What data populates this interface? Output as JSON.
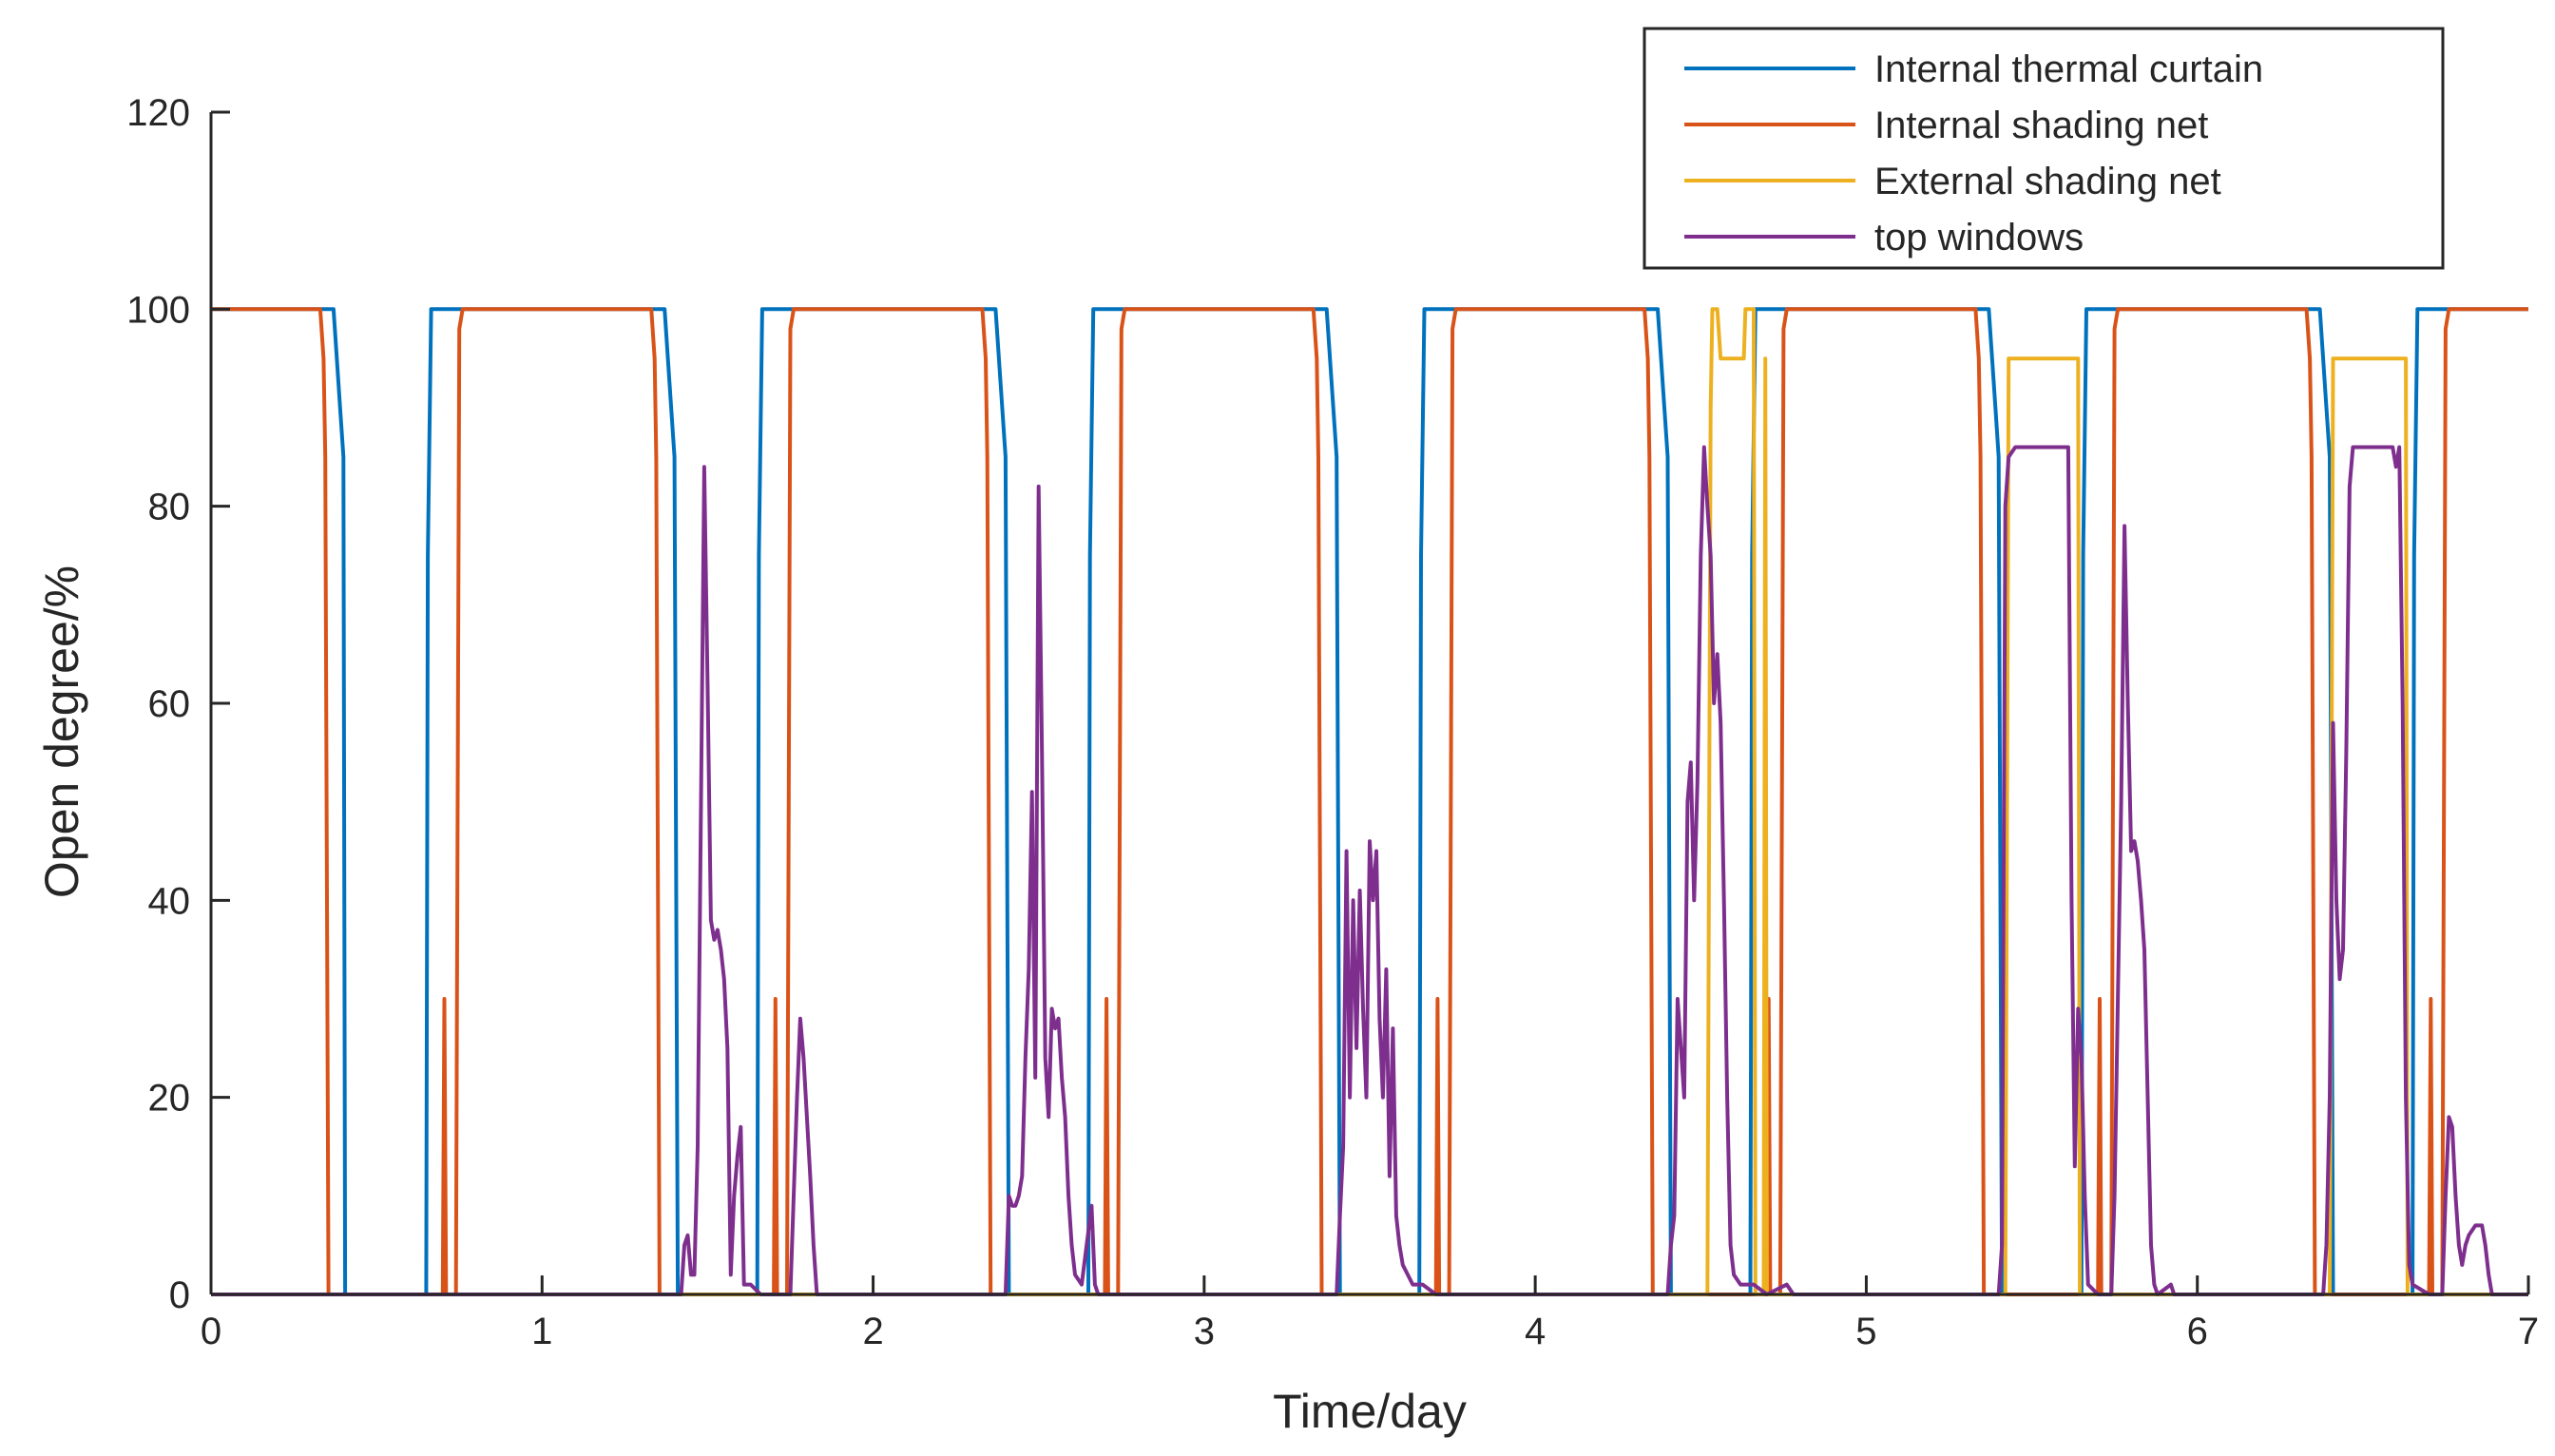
{
  "chart_data": {
    "type": "line",
    "title": "",
    "xlabel": "Time/day",
    "ylabel": "Open degree/%",
    "xlim": [
      0,
      7
    ],
    "ylim": [
      0,
      120
    ],
    "xticks": [
      0,
      1,
      2,
      3,
      4,
      5,
      6,
      7
    ],
    "yticks": [
      0,
      20,
      40,
      60,
      80,
      100,
      120
    ],
    "legend_position": "top-right",
    "series": [
      {
        "name": "Internal thermal curtain",
        "color": "#0072BD",
        "points": [
          [
            0,
            100
          ],
          [
            0.37,
            100
          ],
          [
            0.39,
            90
          ],
          [
            0.4,
            85
          ],
          [
            0.405,
            0
          ],
          [
            0.65,
            0
          ],
          [
            0.655,
            75
          ],
          [
            0.665,
            100
          ],
          [
            1.37,
            100
          ],
          [
            1.39,
            90
          ],
          [
            1.4,
            85
          ],
          [
            1.41,
            0
          ],
          [
            1.65,
            0
          ],
          [
            1.655,
            75
          ],
          [
            1.665,
            100
          ],
          [
            2.37,
            100
          ],
          [
            2.39,
            90
          ],
          [
            2.4,
            85
          ],
          [
            2.41,
            0
          ],
          [
            2.65,
            0
          ],
          [
            2.655,
            75
          ],
          [
            2.665,
            100
          ],
          [
            3.37,
            100
          ],
          [
            3.39,
            90
          ],
          [
            3.4,
            85
          ],
          [
            3.41,
            0
          ],
          [
            3.65,
            0
          ],
          [
            3.655,
            75
          ],
          [
            3.665,
            100
          ],
          [
            4.37,
            100
          ],
          [
            4.39,
            90
          ],
          [
            4.4,
            85
          ],
          [
            4.41,
            0
          ],
          [
            4.65,
            0
          ],
          [
            4.655,
            75
          ],
          [
            4.665,
            100
          ],
          [
            5.37,
            100
          ],
          [
            5.39,
            90
          ],
          [
            5.4,
            85
          ],
          [
            5.41,
            0
          ],
          [
            5.65,
            0
          ],
          [
            5.655,
            75
          ],
          [
            5.665,
            100
          ],
          [
            6.37,
            100
          ],
          [
            6.39,
            90
          ],
          [
            6.4,
            85
          ],
          [
            6.41,
            0
          ],
          [
            6.65,
            0
          ],
          [
            6.655,
            75
          ],
          [
            6.665,
            100
          ],
          [
            7.0,
            100
          ]
        ]
      },
      {
        "name": "Internal shading net",
        "color": "#D95319",
        "points": [
          [
            0,
            100
          ],
          [
            0.33,
            100
          ],
          [
            0.34,
            95
          ],
          [
            0.345,
            85
          ],
          [
            0.355,
            0
          ],
          [
            0.7,
            0
          ],
          [
            0.705,
            30
          ],
          [
            0.71,
            0
          ],
          [
            0.74,
            0
          ],
          [
            0.75,
            98
          ],
          [
            0.76,
            100
          ],
          [
            1.33,
            100
          ],
          [
            1.34,
            95
          ],
          [
            1.345,
            85
          ],
          [
            1.355,
            0
          ],
          [
            1.7,
            0
          ],
          [
            1.705,
            30
          ],
          [
            1.71,
            0
          ],
          [
            1.74,
            0
          ],
          [
            1.75,
            98
          ],
          [
            1.76,
            100
          ],
          [
            2.33,
            100
          ],
          [
            2.34,
            95
          ],
          [
            2.345,
            85
          ],
          [
            2.355,
            0
          ],
          [
            2.7,
            0
          ],
          [
            2.705,
            30
          ],
          [
            2.71,
            0
          ],
          [
            2.74,
            0
          ],
          [
            2.75,
            98
          ],
          [
            2.76,
            100
          ],
          [
            3.33,
            100
          ],
          [
            3.34,
            95
          ],
          [
            3.345,
            85
          ],
          [
            3.355,
            0
          ],
          [
            3.7,
            0
          ],
          [
            3.705,
            30
          ],
          [
            3.71,
            0
          ],
          [
            3.74,
            0
          ],
          [
            3.75,
            98
          ],
          [
            3.76,
            100
          ],
          [
            4.33,
            100
          ],
          [
            4.34,
            95
          ],
          [
            4.345,
            85
          ],
          [
            4.355,
            0
          ],
          [
            4.7,
            0
          ],
          [
            4.705,
            30
          ],
          [
            4.71,
            0
          ],
          [
            4.74,
            0
          ],
          [
            4.75,
            98
          ],
          [
            4.76,
            100
          ],
          [
            5.33,
            100
          ],
          [
            5.34,
            95
          ],
          [
            5.345,
            85
          ],
          [
            5.355,
            0
          ],
          [
            5.7,
            0
          ],
          [
            5.705,
            30
          ],
          [
            5.71,
            0
          ],
          [
            5.74,
            0
          ],
          [
            5.75,
            98
          ],
          [
            5.76,
            100
          ],
          [
            6.33,
            100
          ],
          [
            6.34,
            95
          ],
          [
            6.345,
            85
          ],
          [
            6.355,
            0
          ],
          [
            6.7,
            0
          ],
          [
            6.705,
            30
          ],
          [
            6.71,
            0
          ],
          [
            6.74,
            0
          ],
          [
            6.75,
            98
          ],
          [
            6.76,
            100
          ],
          [
            7.0,
            100
          ]
        ]
      },
      {
        "name": "External shading net",
        "color": "#EDB120",
        "points": [
          [
            0,
            0
          ],
          [
            4.52,
            0
          ],
          [
            4.53,
            90
          ],
          [
            4.535,
            100
          ],
          [
            4.55,
            100
          ],
          [
            4.56,
            95
          ],
          [
            4.63,
            95
          ],
          [
            4.635,
            100
          ],
          [
            4.66,
            100
          ],
          [
            4.665,
            0
          ],
          [
            4.69,
            0
          ],
          [
            4.695,
            95
          ],
          [
            4.7,
            0
          ],
          [
            5.42,
            0
          ],
          [
            5.43,
            95
          ],
          [
            5.64,
            95
          ],
          [
            5.645,
            0
          ],
          [
            6.4,
            0
          ],
          [
            6.41,
            95
          ],
          [
            6.63,
            95
          ],
          [
            6.635,
            0
          ],
          [
            7.0,
            0
          ]
        ]
      },
      {
        "name": "top windows",
        "color": "#7E2F8E",
        "points": [
          [
            0,
            0
          ],
          [
            1.42,
            0
          ],
          [
            1.43,
            5
          ],
          [
            1.44,
            6
          ],
          [
            1.45,
            2
          ],
          [
            1.46,
            2
          ],
          [
            1.47,
            15
          ],
          [
            1.48,
            50
          ],
          [
            1.49,
            84
          ],
          [
            1.5,
            62
          ],
          [
            1.51,
            38
          ],
          [
            1.52,
            36
          ],
          [
            1.53,
            37
          ],
          [
            1.54,
            35
          ],
          [
            1.55,
            32
          ],
          [
            1.56,
            25
          ],
          [
            1.57,
            2
          ],
          [
            1.58,
            10
          ],
          [
            1.59,
            14
          ],
          [
            1.6,
            17
          ],
          [
            1.61,
            1
          ],
          [
            1.62,
            1
          ],
          [
            1.63,
            1
          ],
          [
            1.66,
            0
          ],
          [
            1.75,
            0
          ],
          [
            1.76,
            10
          ],
          [
            1.77,
            20
          ],
          [
            1.78,
            28
          ],
          [
            1.79,
            24
          ],
          [
            1.8,
            18
          ],
          [
            1.81,
            12
          ],
          [
            1.82,
            5
          ],
          [
            1.83,
            0
          ],
          [
            2.4,
            0
          ],
          [
            2.41,
            10
          ],
          [
            2.42,
            9
          ],
          [
            2.43,
            9
          ],
          [
            2.44,
            10
          ],
          [
            2.45,
            12
          ],
          [
            2.46,
            24
          ],
          [
            2.47,
            33
          ],
          [
            2.48,
            51
          ],
          [
            2.49,
            22
          ],
          [
            2.5,
            82
          ],
          [
            2.51,
            55
          ],
          [
            2.52,
            24
          ],
          [
            2.53,
            18
          ],
          [
            2.54,
            29
          ],
          [
            2.55,
            27
          ],
          [
            2.56,
            28
          ],
          [
            2.57,
            22
          ],
          [
            2.58,
            18
          ],
          [
            2.59,
            10
          ],
          [
            2.6,
            5
          ],
          [
            2.61,
            2
          ],
          [
            2.63,
            1
          ],
          [
            2.66,
            9
          ],
          [
            2.67,
            1
          ],
          [
            2.68,
            0
          ],
          [
            3.4,
            0
          ],
          [
            3.41,
            8
          ],
          [
            3.42,
            15
          ],
          [
            3.43,
            45
          ],
          [
            3.44,
            20
          ],
          [
            3.45,
            40
          ],
          [
            3.46,
            25
          ],
          [
            3.47,
            41
          ],
          [
            3.48,
            29
          ],
          [
            3.49,
            20
          ],
          [
            3.5,
            46
          ],
          [
            3.51,
            40
          ],
          [
            3.52,
            45
          ],
          [
            3.53,
            28
          ],
          [
            3.54,
            20
          ],
          [
            3.55,
            33
          ],
          [
            3.56,
            12
          ],
          [
            3.57,
            27
          ],
          [
            3.58,
            8
          ],
          [
            3.59,
            5
          ],
          [
            3.6,
            3
          ],
          [
            3.63,
            1
          ],
          [
            3.66,
            1
          ],
          [
            3.7,
            0
          ],
          [
            4.4,
            0
          ],
          [
            4.41,
            5
          ],
          [
            4.42,
            8
          ],
          [
            4.43,
            30
          ],
          [
            4.44,
            25
          ],
          [
            4.45,
            20
          ],
          [
            4.46,
            50
          ],
          [
            4.47,
            54
          ],
          [
            4.48,
            40
          ],
          [
            4.49,
            52
          ],
          [
            4.5,
            75
          ],
          [
            4.51,
            86
          ],
          [
            4.52,
            80
          ],
          [
            4.53,
            75
          ],
          [
            4.54,
            60
          ],
          [
            4.55,
            65
          ],
          [
            4.56,
            58
          ],
          [
            4.57,
            40
          ],
          [
            4.58,
            20
          ],
          [
            4.59,
            5
          ],
          [
            4.6,
            2
          ],
          [
            4.62,
            1
          ],
          [
            4.66,
            1
          ],
          [
            4.7,
            0
          ],
          [
            4.76,
            1
          ],
          [
            4.78,
            0
          ],
          [
            5.4,
            0
          ],
          [
            5.41,
            5
          ],
          [
            5.42,
            80
          ],
          [
            5.43,
            85
          ],
          [
            5.45,
            86
          ],
          [
            5.6,
            86
          ],
          [
            5.61,
            86
          ],
          [
            5.62,
            40
          ],
          [
            5.63,
            13
          ],
          [
            5.64,
            29
          ],
          [
            5.65,
            24
          ],
          [
            5.66,
            10
          ],
          [
            5.67,
            1
          ],
          [
            5.7,
            0
          ],
          [
            5.74,
            0
          ],
          [
            5.75,
            10
          ],
          [
            5.76,
            30
          ],
          [
            5.77,
            50
          ],
          [
            5.78,
            78
          ],
          [
            5.79,
            60
          ],
          [
            5.8,
            45
          ],
          [
            5.81,
            46
          ],
          [
            5.82,
            44
          ],
          [
            5.83,
            40
          ],
          [
            5.84,
            35
          ],
          [
            5.85,
            20
          ],
          [
            5.86,
            5
          ],
          [
            5.87,
            1
          ],
          [
            5.88,
            0
          ],
          [
            5.92,
            1
          ],
          [
            5.93,
            0
          ],
          [
            6.38,
            0
          ],
          [
            6.39,
            5
          ],
          [
            6.4,
            20
          ],
          [
            6.41,
            58
          ],
          [
            6.42,
            40
          ],
          [
            6.43,
            32
          ],
          [
            6.44,
            35
          ],
          [
            6.45,
            55
          ],
          [
            6.46,
            82
          ],
          [
            6.47,
            86
          ],
          [
            6.58,
            86
          ],
          [
            6.59,
            86
          ],
          [
            6.6,
            84
          ],
          [
            6.61,
            86
          ],
          [
            6.62,
            60
          ],
          [
            6.63,
            20
          ],
          [
            6.64,
            3
          ],
          [
            6.65,
            1
          ],
          [
            6.7,
            0
          ],
          [
            6.74,
            0
          ],
          [
            6.75,
            10
          ],
          [
            6.76,
            18
          ],
          [
            6.77,
            17
          ],
          [
            6.78,
            10
          ],
          [
            6.79,
            5
          ],
          [
            6.8,
            3
          ],
          [
            6.81,
            5
          ],
          [
            6.82,
            6
          ],
          [
            6.84,
            7
          ],
          [
            6.86,
            7
          ],
          [
            6.87,
            5
          ],
          [
            6.88,
            2
          ],
          [
            6.89,
            0
          ],
          [
            7.0,
            0
          ]
        ]
      }
    ]
  }
}
